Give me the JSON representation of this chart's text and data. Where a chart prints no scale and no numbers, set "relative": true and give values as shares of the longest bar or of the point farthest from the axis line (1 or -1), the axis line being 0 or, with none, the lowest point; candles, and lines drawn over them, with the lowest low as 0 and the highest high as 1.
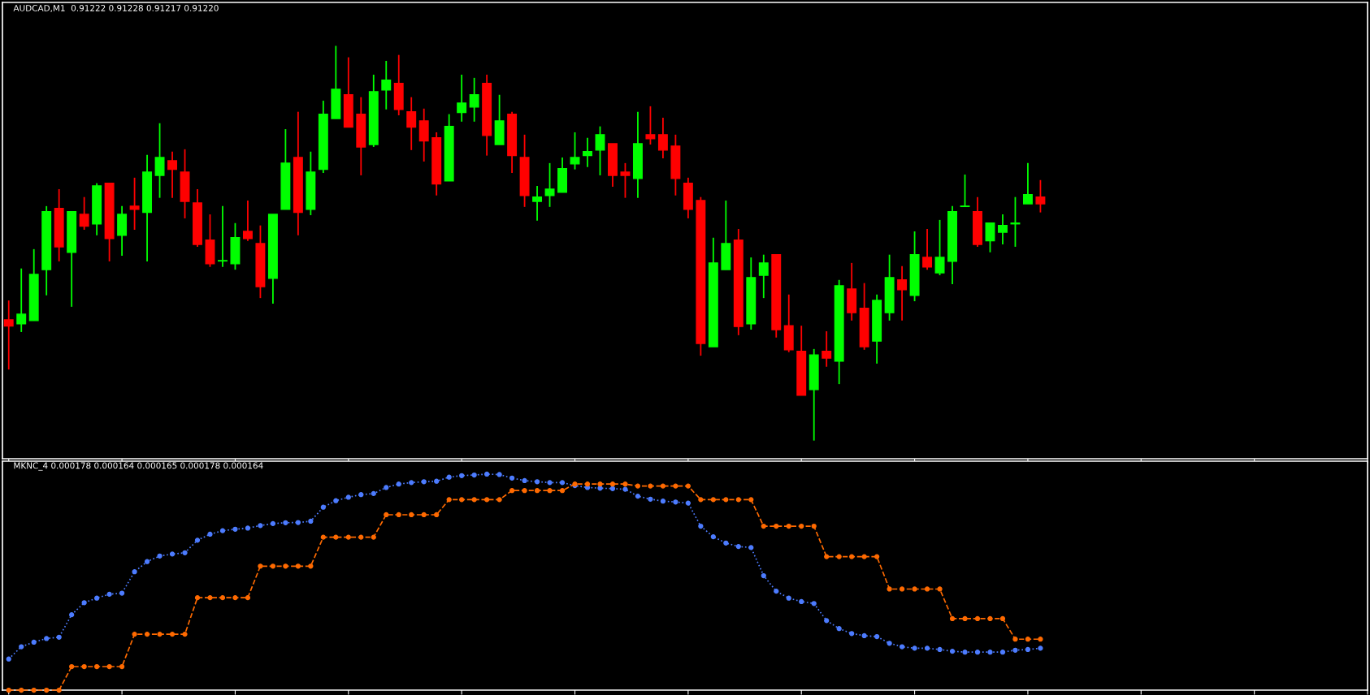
{
  "chart_data": [
    {
      "type": "candlestick",
      "title": "AUDCAD,M1  0.91222 0.91228 0.91217 0.91220",
      "relative": true,
      "categories": [
        null,
        null,
        null,
        null,
        null,
        null,
        null,
        null,
        null,
        null,
        null,
        null,
        null,
        null,
        null,
        null,
        null,
        null,
        null,
        null,
        null,
        null,
        null,
        null,
        null,
        null,
        null,
        null,
        null,
        null,
        null,
        null,
        null,
        null,
        null,
        null,
        null,
        null,
        null,
        null,
        null,
        null,
        null,
        null,
        null,
        null,
        null,
        null,
        null,
        null,
        null,
        null,
        null,
        null,
        null,
        null,
        null,
        null,
        null,
        null,
        null,
        null,
        null,
        null,
        null,
        null,
        null,
        null,
        null,
        null,
        null,
        null,
        null,
        null,
        null,
        null,
        null,
        null,
        null,
        null,
        null,
        null,
        null
      ],
      "ohlc": [
        [
          0.306,
          0.355,
          0.18,
          0.29
        ],
        [
          0.296,
          0.436,
          0.275,
          0.32
        ],
        [
          0.304,
          0.485,
          0.304,
          0.421
        ],
        [
          0.433,
          0.594,
          0.368,
          0.58
        ],
        [
          0.588,
          0.637,
          0.454,
          0.491
        ],
        [
          0.477,
          0.58,
          0.339,
          0.58
        ],
        [
          0.573,
          0.617,
          0.534,
          0.543
        ],
        [
          0.549,
          0.652,
          0.52,
          0.645
        ],
        [
          0.652,
          0.652,
          0.454,
          0.512
        ],
        [
          0.52,
          0.594,
          0.468,
          0.573
        ],
        [
          0.594,
          0.666,
          0.534,
          0.586
        ],
        [
          0.578,
          0.724,
          0.454,
          0.68
        ],
        [
          0.672,
          0.804,
          0.615,
          0.717
        ],
        [
          0.709,
          0.732,
          0.615,
          0.687
        ],
        [
          0.68,
          0.738,
          0.563,
          0.606
        ],
        [
          0.602,
          0.637,
          0.491,
          0.497
        ],
        [
          0.508,
          0.573,
          0.44,
          0.448
        ],
        [
          0.455,
          0.594,
          0.44,
          0.456
        ],
        [
          0.448,
          0.551,
          0.433,
          0.514
        ],
        [
          0.53,
          0.608,
          0.506,
          0.512
        ],
        [
          0.499,
          0.545,
          0.361,
          0.39
        ],
        [
          0.411,
          0.573,
          0.347,
          0.573
        ],
        [
          0.586,
          0.789,
          0.586,
          0.703
        ],
        [
          0.717,
          0.833,
          0.52,
          0.578
        ],
        [
          0.586,
          0.732,
          0.571,
          0.68
        ],
        [
          0.687,
          0.861,
          0.678,
          0.827
        ],
        [
          0.816,
          1.0,
          0.816,
          0.89
        ],
        [
          0.876,
          0.971,
          0.794,
          0.794
        ],
        [
          0.827,
          0.87,
          0.672,
          0.744
        ],
        [
          0.75,
          0.927,
          0.744,
          0.884
        ],
        [
          0.888,
          0.962,
          0.839,
          0.913
        ],
        [
          0.905,
          0.977,
          0.824,
          0.839
        ],
        [
          0.833,
          0.87,
          0.736,
          0.794
        ],
        [
          0.81,
          0.841,
          0.707,
          0.759
        ],
        [
          0.767,
          0.781,
          0.621,
          0.65
        ],
        [
          0.658,
          0.827,
          0.658,
          0.796
        ],
        [
          0.831,
          0.927,
          0.808,
          0.855
        ],
        [
          0.845,
          0.919,
          0.808,
          0.876
        ],
        [
          0.905,
          0.927,
          0.722,
          0.773
        ],
        [
          0.75,
          0.876,
          0.75,
          0.81
        ],
        [
          0.827,
          0.833,
          0.678,
          0.722
        ],
        [
          0.717,
          0.775,
          0.592,
          0.621
        ],
        [
          0.606,
          0.645,
          0.557,
          0.617
        ],
        [
          0.621,
          0.703,
          0.592,
          0.637
        ],
        [
          0.629,
          0.717,
          0.629,
          0.689
        ],
        [
          0.701,
          0.781,
          0.687,
          0.717
        ],
        [
          0.722,
          0.767,
          0.693,
          0.732
        ],
        [
          0.736,
          0.796,
          0.672,
          0.775
        ],
        [
          0.752,
          0.752,
          0.643,
          0.672
        ],
        [
          0.68,
          0.703,
          0.615,
          0.672
        ],
        [
          0.664,
          0.833,
          0.615,
          0.752
        ],
        [
          0.775,
          0.847,
          0.75,
          0.765
        ],
        [
          0.775,
          0.818,
          0.715,
          0.736
        ],
        [
          0.746,
          0.775,
          0.621,
          0.664
        ],
        [
          0.652,
          0.666,
          0.563,
          0.586
        ],
        [
          0.608,
          0.617,
          0.215,
          0.246
        ],
        [
          0.238,
          0.514,
          0.238,
          0.45
        ],
        [
          0.433,
          0.608,
          0.433,
          0.499
        ],
        [
          0.508,
          0.536,
          0.267,
          0.289
        ],
        [
          0.296,
          0.464,
          0.281,
          0.413
        ],
        [
          0.419,
          0.471,
          0.361,
          0.45
        ],
        [
          0.471,
          0.471,
          0.261,
          0.281
        ],
        [
          0.291,
          0.37,
          0.224,
          0.23
        ],
        [
          0.226,
          0.291,
          0.115,
          0.115
        ],
        [
          0.129,
          0.232,
          0.0,
          0.217
        ],
        [
          0.226,
          0.277,
          0.187,
          0.209
        ],
        [
          0.201,
          0.407,
          0.143,
          0.392
        ],
        [
          0.384,
          0.45,
          0.304,
          0.324
        ],
        [
          0.335,
          0.399,
          0.23,
          0.238
        ],
        [
          0.252,
          0.37,
          0.195,
          0.355
        ],
        [
          0.324,
          0.471,
          0.304,
          0.413
        ],
        [
          0.407,
          0.442,
          0.304,
          0.382
        ],
        [
          0.368,
          0.53,
          0.353,
          0.471
        ],
        [
          0.464,
          0.536,
          0.433,
          0.44
        ],
        [
          0.425,
          0.559,
          0.419,
          0.464
        ],
        [
          0.454,
          0.594,
          0.396,
          0.58
        ],
        [
          0.593,
          0.674,
          0.593,
          0.594
        ],
        [
          0.58,
          0.617,
          0.491,
          0.497
        ],
        [
          0.506,
          0.551,
          0.477,
          0.551
        ],
        [
          0.528,
          0.573,
          0.497,
          0.545
        ],
        [
          0.549,
          0.617,
          0.491,
          0.551
        ],
        [
          0.6,
          0.703,
          0.6,
          0.623
        ],
        [
          0.617,
          0.66,
          0.578,
          0.6
        ]
      ],
      "colors": [
        "#ff0000",
        "#00ff00",
        "#00ff00",
        "#00ff00",
        "#ff0000",
        "#00ff00",
        "#ff0000",
        "#00ff00",
        "#ff0000",
        "#00ff00",
        "#ff0000",
        "#00ff00",
        "#00ff00",
        "#ff0000",
        "#ff0000",
        "#ff0000",
        "#ff0000",
        "#00ff00",
        "#00ff00",
        "#ff0000",
        "#ff0000",
        "#00ff00",
        "#00ff00",
        "#ff0000",
        "#00ff00",
        "#00ff00",
        "#00ff00",
        "#ff0000",
        "#ff0000",
        "#00ff00",
        "#00ff00",
        "#ff0000",
        "#ff0000",
        "#ff0000",
        "#ff0000",
        "#00ff00",
        "#00ff00",
        "#00ff00",
        "#ff0000",
        "#00ff00",
        "#ff0000",
        "#ff0000",
        "#00ff00",
        "#00ff00",
        "#00ff00",
        "#00ff00",
        "#00ff00",
        "#00ff00",
        "#ff0000",
        "#ff0000",
        "#00ff00",
        "#ff0000",
        "#ff0000",
        "#ff0000",
        "#ff0000",
        "#ff0000",
        "#00ff00",
        "#00ff00",
        "#ff0000",
        "#00ff00",
        "#00ff00",
        "#ff0000",
        "#ff0000",
        "#ff0000",
        "#00ff00",
        "#ff0000",
        "#00ff00",
        "#ff0000",
        "#ff0000",
        "#00ff00",
        "#00ff00",
        "#ff0000",
        "#00ff00",
        "#ff0000",
        "#00ff00",
        "#00ff00",
        "#00ff00",
        "#ff0000",
        "#00ff00",
        "#00ff00",
        "#00ff00",
        "#00ff00",
        "#ff0000"
      ]
    },
    {
      "type": "line",
      "title": "MKNC_4 0.000178 0.000164 0.000165 0.000178 0.000164",
      "relative": true,
      "categories": [
        null,
        null,
        null,
        null,
        null,
        null,
        null,
        null,
        null,
        null,
        null,
        null,
        null,
        null,
        null,
        null,
        null,
        null,
        null,
        null,
        null,
        null,
        null,
        null,
        null,
        null,
        null,
        null,
        null,
        null,
        null,
        null,
        null,
        null,
        null,
        null,
        null,
        null,
        null,
        null,
        null,
        null,
        null,
        null,
        null,
        null,
        null,
        null,
        null,
        null,
        null,
        null,
        null,
        null,
        null,
        null,
        null,
        null,
        null,
        null,
        null,
        null,
        null,
        null,
        null,
        null,
        null,
        null,
        null,
        null,
        null,
        null,
        null,
        null,
        null,
        null,
        null,
        null,
        null,
        null,
        null,
        null,
        null
      ],
      "series": [
        {
          "color": "#4d7cff",
          "marker": "circle",
          "line_style": "dotted",
          "values": [
            0.144,
            0.201,
            0.222,
            0.239,
            0.245,
            0.349,
            0.405,
            0.426,
            0.444,
            0.449,
            0.548,
            0.595,
            0.621,
            0.63,
            0.636,
            0.694,
            0.722,
            0.738,
            0.745,
            0.75,
            0.762,
            0.771,
            0.775,
            0.776,
            0.782,
            0.847,
            0.877,
            0.893,
            0.905,
            0.91,
            0.938,
            0.954,
            0.961,
            0.965,
            0.967,
            0.986,
            0.993,
            0.996,
            1.0,
            0.998,
            0.982,
            0.97,
            0.965,
            0.961,
            0.961,
            0.947,
            0.938,
            0.935,
            0.933,
            0.93,
            0.898,
            0.884,
            0.875,
            0.871,
            0.866,
            0.759,
            0.71,
            0.681,
            0.665,
            0.66,
            0.53,
            0.458,
            0.426,
            0.41,
            0.401,
            0.322,
            0.285,
            0.262,
            0.252,
            0.248,
            0.217,
            0.201,
            0.194,
            0.194,
            0.188,
            0.18,
            0.176,
            0.176,
            0.176,
            0.176,
            0.185,
            0.188,
            0.194
          ]
        },
        {
          "color": "#ff6a00",
          "marker": "circle",
          "line_style": "dashed",
          "values": [
            0.0,
            0.0,
            0.0,
            0.0,
            0.0,
            0.109,
            0.109,
            0.109,
            0.109,
            0.109,
            0.259,
            0.259,
            0.259,
            0.259,
            0.259,
            0.428,
            0.428,
            0.428,
            0.428,
            0.428,
            0.574,
            0.574,
            0.574,
            0.574,
            0.574,
            0.708,
            0.708,
            0.708,
            0.708,
            0.708,
            0.812,
            0.812,
            0.812,
            0.812,
            0.812,
            0.882,
            0.882,
            0.882,
            0.882,
            0.882,
            0.924,
            0.924,
            0.924,
            0.924,
            0.924,
            0.954,
            0.954,
            0.954,
            0.954,
            0.954,
            0.945,
            0.945,
            0.945,
            0.945,
            0.945,
            0.882,
            0.882,
            0.882,
            0.882,
            0.882,
            0.759,
            0.759,
            0.759,
            0.759,
            0.759,
            0.618,
            0.618,
            0.618,
            0.618,
            0.618,
            0.468,
            0.468,
            0.468,
            0.468,
            0.468,
            0.331,
            0.331,
            0.331,
            0.331,
            0.331,
            0.236,
            0.236,
            0.236
          ]
        }
      ]
    }
  ]
}
